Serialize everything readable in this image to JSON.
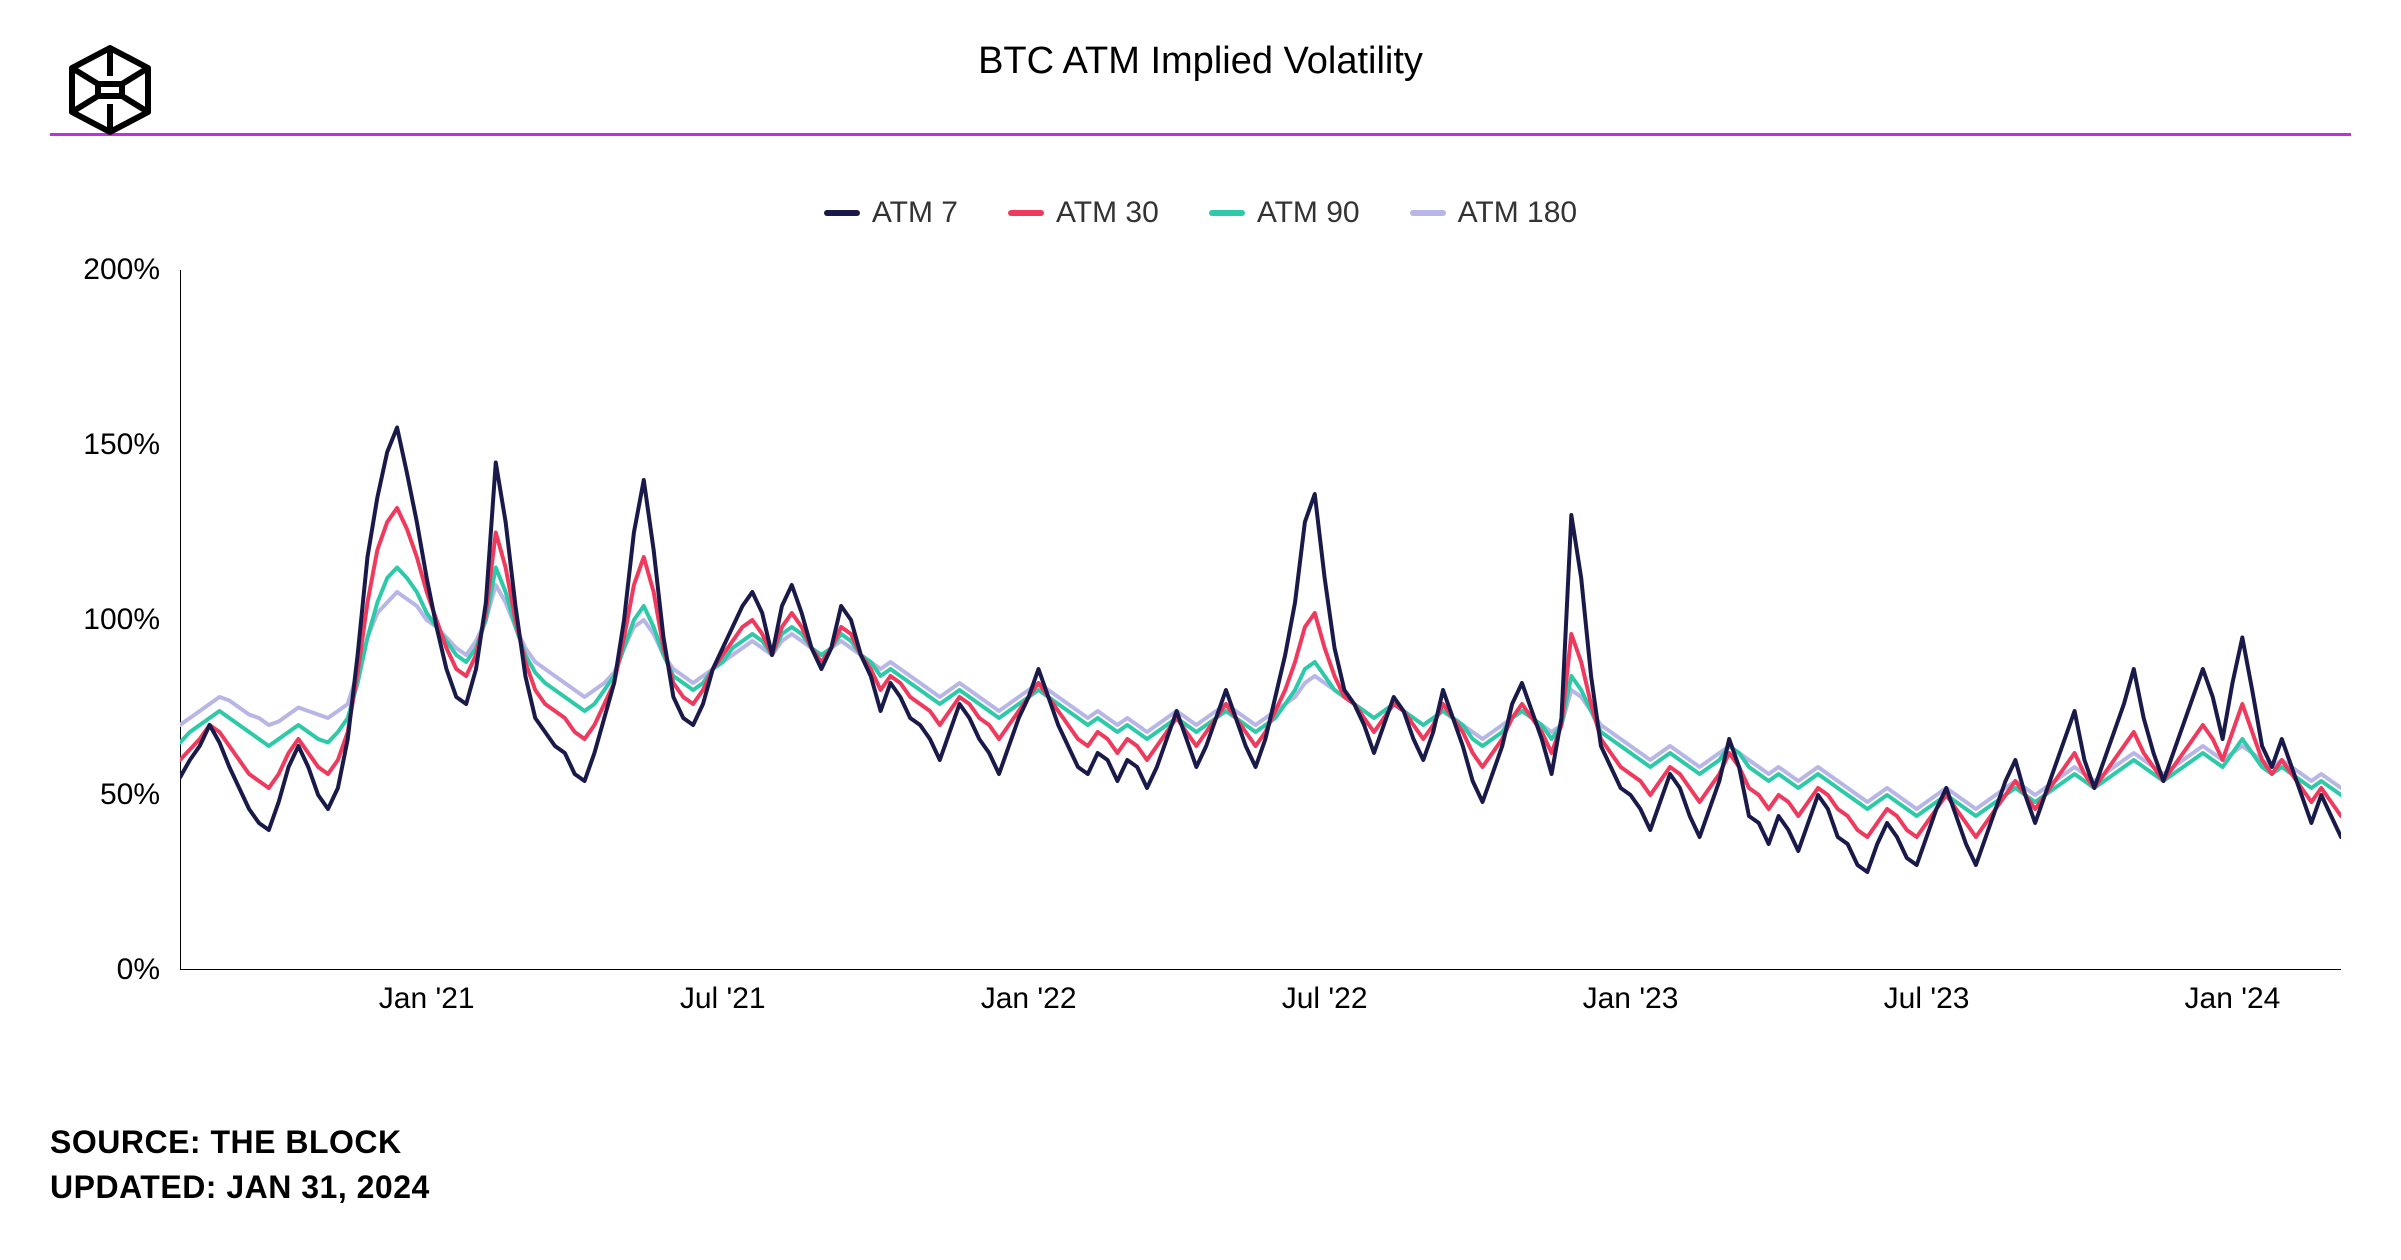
{
  "title": "BTC ATM Implied Volatility",
  "divider_color": "#c030e0",
  "legend": [
    {
      "label": "ATM 7",
      "color": "#1a1a4a"
    },
    {
      "label": "ATM 30",
      "color": "#ef3a5d"
    },
    {
      "label": "ATM 90",
      "color": "#2dc9a8"
    },
    {
      "label": "ATM 180",
      "color": "#b8b6e6"
    }
  ],
  "footer_source": "SOURCE: THE BLOCK",
  "footer_updated": "UPDATED: JAN 31, 2024",
  "chart": {
    "type": "line",
    "background_color": "#ffffff",
    "axis_color": "#000000",
    "line_width": 4,
    "ylim": [
      0,
      200
    ],
    "yticks": [
      0,
      50,
      100,
      150,
      200
    ],
    "ytick_labels": [
      "0%",
      "50%",
      "100%",
      "150%",
      "200%"
    ],
    "x_n_points": 220,
    "xticks": [
      {
        "pos": 25,
        "label": "Jan '21"
      },
      {
        "pos": 55,
        "label": "Jul '21"
      },
      {
        "pos": 86,
        "label": "Jan '22"
      },
      {
        "pos": 116,
        "label": "Jul '22"
      },
      {
        "pos": 147,
        "label": "Jan '23"
      },
      {
        "pos": 177,
        "label": "Jul '23"
      },
      {
        "pos": 208,
        "label": "Jan '24"
      }
    ],
    "series": [
      {
        "name": "ATM 180",
        "color": "#b8b6e6",
        "values": [
          70,
          72,
          74,
          76,
          78,
          77,
          75,
          73,
          72,
          70,
          71,
          73,
          75,
          74,
          73,
          72,
          74,
          76,
          85,
          95,
          102,
          105,
          108,
          106,
          104,
          100,
          98,
          95,
          92,
          90,
          94,
          100,
          110,
          105,
          98,
          92,
          88,
          86,
          84,
          82,
          80,
          78,
          80,
          82,
          85,
          92,
          98,
          100,
          96,
          90,
          86,
          84,
          82,
          84,
          86,
          88,
          90,
          92,
          94,
          92,
          90,
          94,
          96,
          94,
          92,
          90,
          92,
          94,
          92,
          90,
          88,
          86,
          88,
          86,
          84,
          82,
          80,
          78,
          80,
          82,
          80,
          78,
          76,
          74,
          76,
          78,
          80,
          82,
          80,
          78,
          76,
          74,
          72,
          74,
          72,
          70,
          72,
          70,
          68,
          70,
          72,
          74,
          72,
          70,
          72,
          74,
          76,
          74,
          72,
          70,
          72,
          74,
          76,
          78,
          82,
          84,
          82,
          80,
          78,
          76,
          74,
          72,
          74,
          76,
          74,
          72,
          70,
          72,
          74,
          72,
          70,
          68,
          66,
          68,
          70,
          72,
          74,
          72,
          70,
          68,
          70,
          80,
          78,
          74,
          70,
          68,
          66,
          64,
          62,
          60,
          62,
          64,
          62,
          60,
          58,
          60,
          62,
          64,
          62,
          60,
          58,
          56,
          58,
          56,
          54,
          56,
          58,
          56,
          54,
          52,
          50,
          48,
          50,
          52,
          50,
          48,
          46,
          48,
          50,
          52,
          50,
          48,
          46,
          48,
          50,
          52,
          54,
          52,
          50,
          52,
          54,
          56,
          58,
          56,
          54,
          56,
          58,
          60,
          62,
          60,
          58,
          56,
          58,
          60,
          62,
          64,
          62,
          60,
          62,
          64,
          62,
          60,
          58,
          60,
          58,
          56,
          54,
          56,
          54,
          52
        ]
      },
      {
        "name": "ATM 90",
        "color": "#2dc9a8",
        "values": [
          65,
          68,
          70,
          72,
          74,
          72,
          70,
          68,
          66,
          64,
          66,
          68,
          70,
          68,
          66,
          65,
          68,
          72,
          82,
          95,
          105,
          112,
          115,
          112,
          108,
          102,
          98,
          94,
          90,
          88,
          92,
          100,
          115,
          108,
          98,
          90,
          85,
          82,
          80,
          78,
          76,
          74,
          76,
          80,
          84,
          92,
          100,
          104,
          98,
          90,
          84,
          82,
          80,
          82,
          86,
          88,
          92,
          94,
          96,
          94,
          90,
          96,
          98,
          96,
          92,
          90,
          92,
          96,
          94,
          90,
          88,
          84,
          86,
          84,
          82,
          80,
          78,
          76,
          78,
          80,
          78,
          76,
          74,
          72,
          74,
          76,
          78,
          80,
          78,
          76,
          74,
          72,
          70,
          72,
          70,
          68,
          70,
          68,
          66,
          68,
          70,
          72,
          70,
          68,
          70,
          72,
          74,
          72,
          70,
          68,
          70,
          72,
          76,
          80,
          86,
          88,
          84,
          80,
          78,
          76,
          74,
          72,
          74,
          76,
          74,
          72,
          70,
          72,
          74,
          72,
          70,
          66,
          64,
          66,
          68,
          72,
          74,
          72,
          70,
          66,
          70,
          84,
          80,
          74,
          68,
          66,
          64,
          62,
          60,
          58,
          60,
          62,
          60,
          58,
          56,
          58,
          60,
          64,
          62,
          58,
          56,
          54,
          56,
          54,
          52,
          54,
          56,
          54,
          52,
          50,
          48,
          46,
          48,
          50,
          48,
          46,
          44,
          46,
          48,
          50,
          48,
          46,
          44,
          46,
          48,
          50,
          52,
          50,
          48,
          50,
          52,
          54,
          56,
          54,
          52,
          54,
          56,
          58,
          60,
          58,
          56,
          54,
          56,
          58,
          60,
          62,
          60,
          58,
          62,
          66,
          62,
          58,
          56,
          58,
          56,
          54,
          52,
          54,
          52,
          50
        ]
      },
      {
        "name": "ATM 30",
        "color": "#ef3a5d",
        "values": [
          60,
          63,
          66,
          70,
          68,
          64,
          60,
          56,
          54,
          52,
          56,
          62,
          66,
          62,
          58,
          56,
          60,
          68,
          85,
          105,
          120,
          128,
          132,
          126,
          118,
          108,
          100,
          92,
          86,
          84,
          90,
          102,
          125,
          115,
          100,
          88,
          80,
          76,
          74,
          72,
          68,
          66,
          70,
          76,
          82,
          95,
          110,
          118,
          108,
          92,
          82,
          78,
          76,
          80,
          86,
          90,
          94,
          98,
          100,
          96,
          90,
          98,
          102,
          98,
          92,
          88,
          92,
          98,
          96,
          90,
          86,
          80,
          84,
          82,
          78,
          76,
          74,
          70,
          74,
          78,
          76,
          72,
          70,
          66,
          70,
          74,
          78,
          82,
          78,
          74,
          70,
          66,
          64,
          68,
          66,
          62,
          66,
          64,
          60,
          64,
          68,
          72,
          68,
          64,
          68,
          72,
          76,
          72,
          68,
          64,
          68,
          74,
          80,
          88,
          98,
          102,
          92,
          84,
          78,
          76,
          72,
          68,
          72,
          76,
          74,
          70,
          66,
          70,
          76,
          72,
          68,
          62,
          58,
          62,
          66,
          72,
          76,
          72,
          68,
          62,
          70,
          96,
          88,
          76,
          66,
          62,
          58,
          56,
          54,
          50,
          54,
          58,
          56,
          52,
          48,
          52,
          56,
          62,
          58,
          52,
          50,
          46,
          50,
          48,
          44,
          48,
          52,
          50,
          46,
          44,
          40,
          38,
          42,
          46,
          44,
          40,
          38,
          42,
          46,
          50,
          46,
          42,
          38,
          42,
          46,
          50,
          54,
          50,
          46,
          50,
          54,
          58,
          62,
          56,
          52,
          56,
          60,
          64,
          68,
          62,
          58,
          54,
          58,
          62,
          66,
          70,
          66,
          60,
          68,
          76,
          68,
          60,
          56,
          60,
          56,
          52,
          48,
          52,
          48,
          44
        ]
      },
      {
        "name": "ATM 7",
        "color": "#1a1a4a",
        "values": [
          55,
          60,
          64,
          70,
          65,
          58,
          52,
          46,
          42,
          40,
          48,
          58,
          64,
          58,
          50,
          46,
          52,
          66,
          90,
          118,
          135,
          148,
          155,
          142,
          128,
          112,
          98,
          86,
          78,
          76,
          86,
          105,
          145,
          128,
          104,
          84,
          72,
          68,
          64,
          62,
          56,
          54,
          62,
          72,
          82,
          100,
          125,
          140,
          120,
          95,
          78,
          72,
          70,
          76,
          86,
          92,
          98,
          104,
          108,
          102,
          90,
          104,
          110,
          102,
          92,
          86,
          92,
          104,
          100,
          90,
          84,
          74,
          82,
          78,
          72,
          70,
          66,
          60,
          68,
          76,
          72,
          66,
          62,
          56,
          64,
          72,
          78,
          86,
          78,
          70,
          64,
          58,
          56,
          62,
          60,
          54,
          60,
          58,
          52,
          58,
          66,
          74,
          66,
          58,
          64,
          72,
          80,
          72,
          64,
          58,
          66,
          78,
          90,
          105,
          128,
          136,
          112,
          92,
          80,
          76,
          70,
          62,
          70,
          78,
          74,
          66,
          60,
          68,
          80,
          72,
          64,
          54,
          48,
          56,
          64,
          76,
          82,
          74,
          66,
          56,
          72,
          130,
          112,
          84,
          64,
          58,
          52,
          50,
          46,
          40,
          48,
          56,
          52,
          44,
          38,
          46,
          54,
          66,
          58,
          44,
          42,
          36,
          44,
          40,
          34,
          42,
          50,
          46,
          38,
          36,
          30,
          28,
          36,
          42,
          38,
          32,
          30,
          38,
          46,
          52,
          44,
          36,
          30,
          38,
          46,
          54,
          60,
          50,
          42,
          50,
          58,
          66,
          74,
          60,
          52,
          60,
          68,
          76,
          86,
          72,
          62,
          54,
          62,
          70,
          78,
          86,
          78,
          66,
          82,
          95,
          80,
          64,
          58,
          66,
          58,
          50,
          42,
          50,
          44,
          38
        ]
      }
    ]
  }
}
